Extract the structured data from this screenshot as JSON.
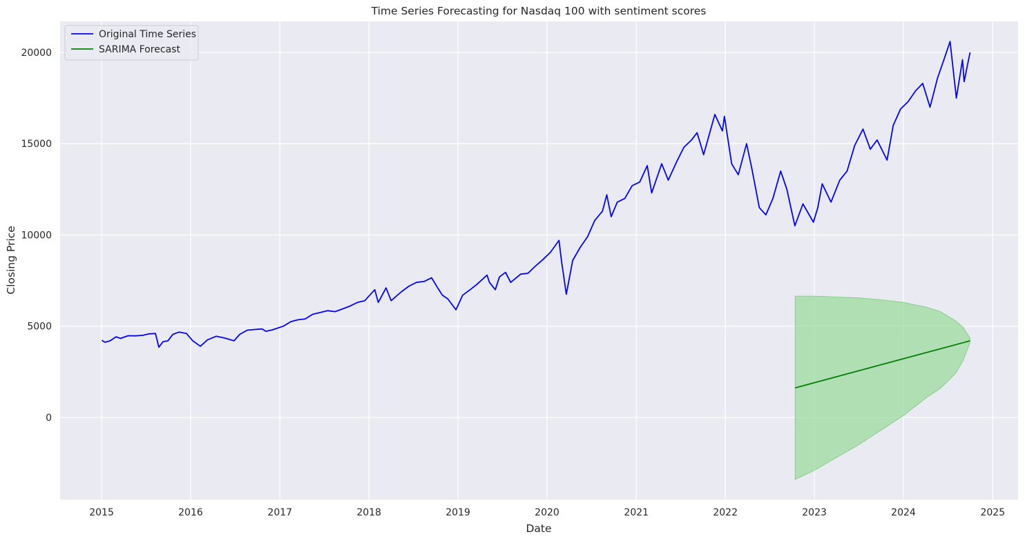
{
  "chart_data": {
    "type": "line",
    "title": "Time Series Forecasting for Nasdaq 100 with sentiment scores",
    "xlabel": "Date",
    "ylabel": "Closing Price",
    "xlim": [
      "2014-07-15",
      "2025-04-15"
    ],
    "ylim": [
      -4500,
      21700
    ],
    "x_ticks": [
      "2015-01-01",
      "2016-01-01",
      "2017-01-01",
      "2018-01-01",
      "2019-01-01",
      "2020-01-01",
      "2021-01-01",
      "2022-01-01",
      "2023-01-01",
      "2024-01-01",
      "2025-01-01"
    ],
    "x_tick_labels": [
      "2015",
      "2016",
      "2017",
      "2018",
      "2019",
      "2020",
      "2021",
      "2022",
      "2023",
      "2024",
      "2025"
    ],
    "y_ticks": [
      0,
      5000,
      10000,
      15000,
      20000
    ],
    "y_tick_labels": [
      "0",
      "5000",
      "10000",
      "15000",
      "20000"
    ],
    "grid": true,
    "background": "#eaeaf2",
    "legend_position": "top-left",
    "series": [
      {
        "name": "Original Time Series",
        "color": "#0000ff",
        "points": [
          [
            "2015-01-02",
            4230
          ],
          [
            "2015-01-15",
            4120
          ],
          [
            "2015-02-05",
            4200
          ],
          [
            "2015-03-01",
            4420
          ],
          [
            "2015-03-20",
            4330
          ],
          [
            "2015-04-20",
            4480
          ],
          [
            "2015-05-20",
            4470
          ],
          [
            "2015-06-20",
            4500
          ],
          [
            "2015-07-15",
            4580
          ],
          [
            "2015-08-10",
            4600
          ],
          [
            "2015-08-24",
            3850
          ],
          [
            "2015-09-10",
            4150
          ],
          [
            "2015-09-30",
            4200
          ],
          [
            "2015-10-20",
            4550
          ],
          [
            "2015-11-15",
            4680
          ],
          [
            "2015-12-15",
            4600
          ],
          [
            "2016-01-10",
            4200
          ],
          [
            "2016-02-10",
            3900
          ],
          [
            "2016-03-10",
            4250
          ],
          [
            "2016-04-15",
            4450
          ],
          [
            "2016-05-20",
            4350
          ],
          [
            "2016-06-27",
            4200
          ],
          [
            "2016-07-20",
            4550
          ],
          [
            "2016-08-20",
            4780
          ],
          [
            "2016-09-20",
            4820
          ],
          [
            "2016-10-20",
            4850
          ],
          [
            "2016-11-05",
            4720
          ],
          [
            "2016-12-01",
            4800
          ],
          [
            "2017-01-15",
            5000
          ],
          [
            "2017-02-15",
            5250
          ],
          [
            "2017-03-15",
            5350
          ],
          [
            "2017-04-15",
            5400
          ],
          [
            "2017-05-15",
            5650
          ],
          [
            "2017-06-15",
            5750
          ],
          [
            "2017-07-15",
            5850
          ],
          [
            "2017-08-15",
            5800
          ],
          [
            "2017-09-15",
            5950
          ],
          [
            "2017-10-15",
            6100
          ],
          [
            "2017-11-15",
            6300
          ],
          [
            "2017-12-15",
            6400
          ],
          [
            "2018-01-25",
            7000
          ],
          [
            "2018-02-08",
            6300
          ],
          [
            "2018-03-12",
            7100
          ],
          [
            "2018-04-02",
            6400
          ],
          [
            "2018-05-15",
            6900
          ],
          [
            "2018-06-15",
            7200
          ],
          [
            "2018-07-15",
            7400
          ],
          [
            "2018-08-15",
            7450
          ],
          [
            "2018-09-15",
            7650
          ],
          [
            "2018-10-10",
            7100
          ],
          [
            "2018-10-29",
            6700
          ],
          [
            "2018-11-20",
            6500
          ],
          [
            "2018-12-24",
            5900
          ],
          [
            "2019-01-20",
            6700
          ],
          [
            "2019-02-20",
            7000
          ],
          [
            "2019-03-20",
            7300
          ],
          [
            "2019-04-30",
            7800
          ],
          [
            "2019-05-10",
            7400
          ],
          [
            "2019-06-03",
            7000
          ],
          [
            "2019-06-20",
            7700
          ],
          [
            "2019-07-15",
            7950
          ],
          [
            "2019-08-05",
            7400
          ],
          [
            "2019-09-15",
            7850
          ],
          [
            "2019-10-15",
            7900
          ],
          [
            "2019-11-15",
            8300
          ],
          [
            "2019-12-15",
            8650
          ],
          [
            "2020-01-15",
            9050
          ],
          [
            "2020-02-19",
            9700
          ],
          [
            "2020-03-01",
            8500
          ],
          [
            "2020-03-20",
            6750
          ],
          [
            "2020-04-15",
            8600
          ],
          [
            "2020-05-15",
            9300
          ],
          [
            "2020-06-15",
            9900
          ],
          [
            "2020-07-15",
            10800
          ],
          [
            "2020-08-15",
            11300
          ],
          [
            "2020-09-02",
            12200
          ],
          [
            "2020-09-20",
            11000
          ],
          [
            "2020-10-15",
            11800
          ],
          [
            "2020-11-15",
            12000
          ],
          [
            "2020-12-15",
            12700
          ],
          [
            "2021-01-15",
            12900
          ],
          [
            "2021-02-15",
            13800
          ],
          [
            "2021-03-05",
            12300
          ],
          [
            "2021-04-15",
            13900
          ],
          [
            "2021-05-12",
            13000
          ],
          [
            "2021-06-15",
            14000
          ],
          [
            "2021-07-15",
            14800
          ],
          [
            "2021-08-15",
            15200
          ],
          [
            "2021-09-07",
            15600
          ],
          [
            "2021-10-04",
            14400
          ],
          [
            "2021-11-19",
            16600
          ],
          [
            "2021-12-20",
            15700
          ],
          [
            "2021-12-28",
            16500
          ],
          [
            "2022-01-27",
            13900
          ],
          [
            "2022-02-23",
            13300
          ],
          [
            "2022-03-29",
            15000
          ],
          [
            "2022-04-20",
            13600
          ],
          [
            "2022-05-20",
            11500
          ],
          [
            "2022-06-16",
            11100
          ],
          [
            "2022-07-15",
            12000
          ],
          [
            "2022-08-16",
            13500
          ],
          [
            "2022-09-10",
            12500
          ],
          [
            "2022-10-13",
            10500
          ],
          [
            "2022-11-15",
            11700
          ],
          [
            "2022-12-28",
            10700
          ],
          [
            "2023-01-15",
            11500
          ],
          [
            "2023-02-02",
            12800
          ],
          [
            "2023-03-10",
            11800
          ],
          [
            "2023-04-15",
            13000
          ],
          [
            "2023-05-15",
            13500
          ],
          [
            "2023-06-15",
            14900
          ],
          [
            "2023-07-19",
            15800
          ],
          [
            "2023-08-18",
            14700
          ],
          [
            "2023-09-15",
            15200
          ],
          [
            "2023-10-26",
            14100
          ],
          [
            "2023-11-20",
            16000
          ],
          [
            "2023-12-20",
            16900
          ],
          [
            "2024-01-20",
            17300
          ],
          [
            "2024-02-20",
            17900
          ],
          [
            "2024-03-20",
            18300
          ],
          [
            "2024-04-19",
            17000
          ],
          [
            "2024-05-20",
            18600
          ],
          [
            "2024-06-20",
            19800
          ],
          [
            "2024-07-10",
            20600
          ],
          [
            "2024-08-05",
            17500
          ],
          [
            "2024-08-30",
            19600
          ],
          [
            "2024-09-06",
            18400
          ],
          [
            "2024-09-30",
            20000
          ]
        ]
      },
      {
        "name": "SARIMA Forecast",
        "color": "#008000",
        "points": [
          [
            "2022-10-14",
            1620
          ],
          [
            "2024-09-30",
            4200
          ]
        ]
      }
    ],
    "confidence_band": {
      "color": "#90d890",
      "points": [
        [
          "2022-10-14",
          -3400,
          6650
        ],
        [
          "2023-01-01",
          -2900,
          6650
        ],
        [
          "2023-04-01",
          -2200,
          6600
        ],
        [
          "2023-07-01",
          -1500,
          6550
        ],
        [
          "2023-10-01",
          -700,
          6450
        ],
        [
          "2024-01-01",
          100,
          6300
        ],
        [
          "2024-04-01",
          1050,
          6050
        ],
        [
          "2024-06-01",
          1600,
          5800
        ],
        [
          "2024-08-01",
          2400,
          5300
        ],
        [
          "2024-09-01",
          3100,
          4950
        ],
        [
          "2024-09-30",
          4100,
          4350
        ]
      ]
    }
  }
}
